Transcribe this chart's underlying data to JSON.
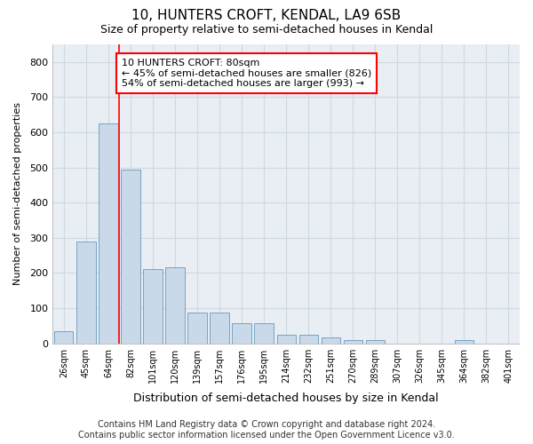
{
  "title": "10, HUNTERS CROFT, KENDAL, LA9 6SB",
  "subtitle": "Size of property relative to semi-detached houses in Kendal",
  "xlabel": "Distribution of semi-detached houses by size in Kendal",
  "ylabel": "Number of semi-detached properties",
  "categories": [
    "26sqm",
    "45sqm",
    "64sqm",
    "82sqm",
    "101sqm",
    "120sqm",
    "139sqm",
    "157sqm",
    "176sqm",
    "195sqm",
    "214sqm",
    "232sqm",
    "251sqm",
    "270sqm",
    "289sqm",
    "307sqm",
    "326sqm",
    "345sqm",
    "364sqm",
    "382sqm",
    "401sqm"
  ],
  "values": [
    35,
    290,
    625,
    495,
    210,
    215,
    88,
    88,
    58,
    58,
    25,
    25,
    18,
    10,
    10,
    0,
    0,
    0,
    8,
    0,
    0
  ],
  "bar_color": "#c9d9ea",
  "bar_edge_color": "#6699bb",
  "annotation_text": "10 HUNTERS CROFT: 80sqm\n← 45% of semi-detached houses are smaller (826)\n54% of semi-detached houses are larger (993) →",
  "annotation_box_color": "white",
  "annotation_box_edge_color": "red",
  "vline_color": "red",
  "vline_bar_index": 3,
  "ylim": [
    0,
    850
  ],
  "yticks": [
    0,
    100,
    200,
    300,
    400,
    500,
    600,
    700,
    800
  ],
  "footer_line1": "Contains HM Land Registry data © Crown copyright and database right 2024.",
  "footer_line2": "Contains public sector information licensed under the Open Government Licence v3.0.",
  "bg_color": "#ffffff",
  "grid_color": "#d0d8e0",
  "title_fontsize": 11,
  "subtitle_fontsize": 9,
  "annotation_fontsize": 8,
  "footer_fontsize": 7
}
